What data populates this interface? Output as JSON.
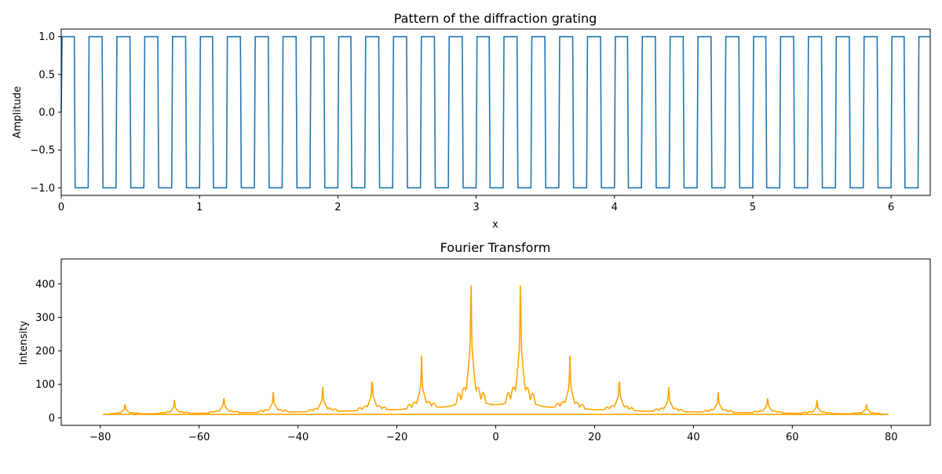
{
  "chart_data": [
    {
      "type": "line",
      "title": "Pattern of the diffraction grating",
      "xlabel": "x",
      "ylabel": "Amplitude",
      "xlim": [
        0,
        6.283
      ],
      "ylim": [
        -1.1,
        1.1
      ],
      "xticks": [
        0,
        1,
        2,
        3,
        4,
        5,
        6
      ],
      "yticks": [
        -1.0,
        -0.5,
        0.0,
        0.5,
        1.0
      ],
      "ytick_labels": [
        "−1.0",
        "−0.5",
        "0.0",
        "0.5",
        "1.0"
      ],
      "color": "#1f77b4",
      "series": [
        {
          "signal": "square wave sign(sin(2*pi*5*x))",
          "frequency": 5,
          "amplitude": 1,
          "x_start": 0,
          "x_end": 6.283
        }
      ]
    },
    {
      "type": "line",
      "title": "Fourier Transform",
      "xlabel": "",
      "ylabel": "Intensity",
      "xlim": [
        -87.9,
        87.9
      ],
      "ylim": [
        -22.6,
        474.5
      ],
      "xticks": [
        -80,
        -60,
        -40,
        -20,
        0,
        20,
        40,
        60,
        80
      ],
      "xtick_labels": [
        "−80",
        "−60",
        "−40",
        "−20",
        "0",
        "20",
        "40",
        "60",
        "80"
      ],
      "yticks": [
        0,
        100,
        200,
        300,
        400
      ],
      "color": "#ffa500",
      "frequency_range": [
        -79.5,
        79.5
      ],
      "peaks": [
        {
          "f": -75,
          "v": 36
        },
        {
          "f": -65,
          "v": 45
        },
        {
          "f": -55,
          "v": 57
        },
        {
          "f": -45,
          "v": 70
        },
        {
          "f": -35,
          "v": 87
        },
        {
          "f": -25,
          "v": 115
        },
        {
          "f": -15,
          "v": 172
        },
        {
          "f": -5,
          "v": 451
        },
        {
          "f": 5,
          "v": 451
        },
        {
          "f": 15,
          "v": 172
        },
        {
          "f": 25,
          "v": 115
        },
        {
          "f": 35,
          "v": 87
        },
        {
          "f": 45,
          "v": 70
        },
        {
          "f": 55,
          "v": 57
        },
        {
          "f": 65,
          "v": 45
        },
        {
          "f": 75,
          "v": 36
        }
      ],
      "baseline_level": 4
    }
  ]
}
